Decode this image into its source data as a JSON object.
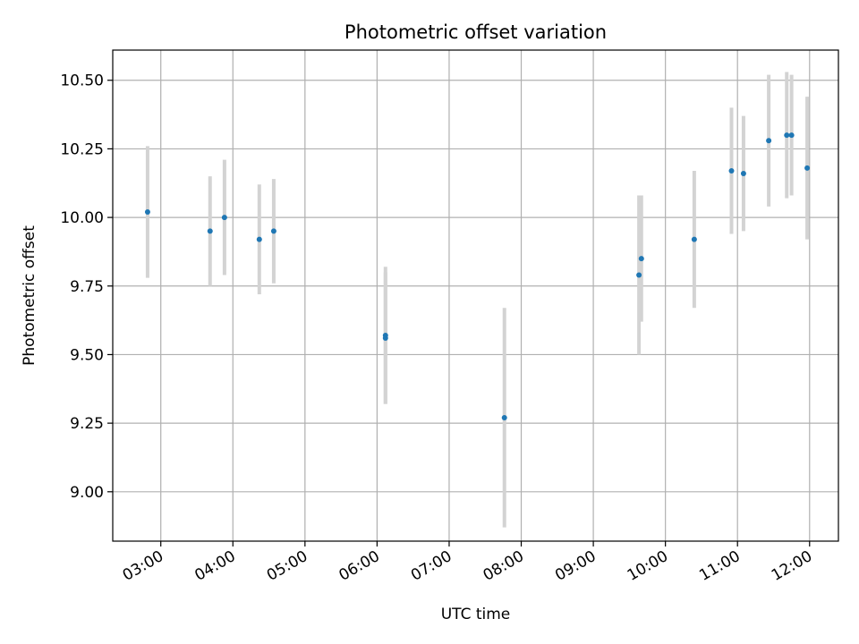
{
  "chart_data": {
    "type": "scatter",
    "title": "Photometric offset variation",
    "xlabel": "UTC time",
    "ylabel": "Photometric offset",
    "x_ticks": [
      "03:00",
      "04:00",
      "05:00",
      "06:00",
      "07:00",
      "08:00",
      "09:00",
      "10:00",
      "11:00",
      "12:00"
    ],
    "y_ticks": [
      "9.00",
      "9.25",
      "9.50",
      "9.75",
      "10.00",
      "10.25",
      "10.50"
    ],
    "xlim": [
      "02:20",
      "12:24"
    ],
    "ylim": [
      8.82,
      10.61
    ],
    "grid": true,
    "colors": {
      "point": "#1f77b4",
      "errorbar": "#d3d3d3",
      "grid": "#b0b0b0"
    },
    "points": [
      {
        "x": "02:49",
        "y": 10.02,
        "yerr": 0.24
      },
      {
        "x": "03:41",
        "y": 9.95,
        "yerr": 0.2
      },
      {
        "x": "03:53",
        "y": 10.0,
        "yerr": 0.21
      },
      {
        "x": "04:22",
        "y": 9.92,
        "yerr": 0.2
      },
      {
        "x": "04:34",
        "y": 9.95,
        "yerr": 0.19
      },
      {
        "x": "06:07",
        "y": 9.57,
        "yerr": 0.25
      },
      {
        "x": "06:07",
        "y": 9.56,
        "yerr": 0.24
      },
      {
        "x": "07:46",
        "y": 9.27,
        "yerr": 0.4
      },
      {
        "x": "09:38",
        "y": 9.79,
        "yerr": 0.29
      },
      {
        "x": "09:40",
        "y": 9.85,
        "yerr": 0.23
      },
      {
        "x": "10:24",
        "y": 9.92,
        "yerr": 0.25
      },
      {
        "x": "10:55",
        "y": 10.17,
        "yerr": 0.23
      },
      {
        "x": "11:05",
        "y": 10.16,
        "yerr": 0.21
      },
      {
        "x": "11:26",
        "y": 10.28,
        "yerr": 0.24
      },
      {
        "x": "11:41",
        "y": 10.3,
        "yerr": 0.23
      },
      {
        "x": "11:45",
        "y": 10.3,
        "yerr": 0.22
      },
      {
        "x": "11:58",
        "y": 10.18,
        "yerr": 0.26
      }
    ]
  }
}
